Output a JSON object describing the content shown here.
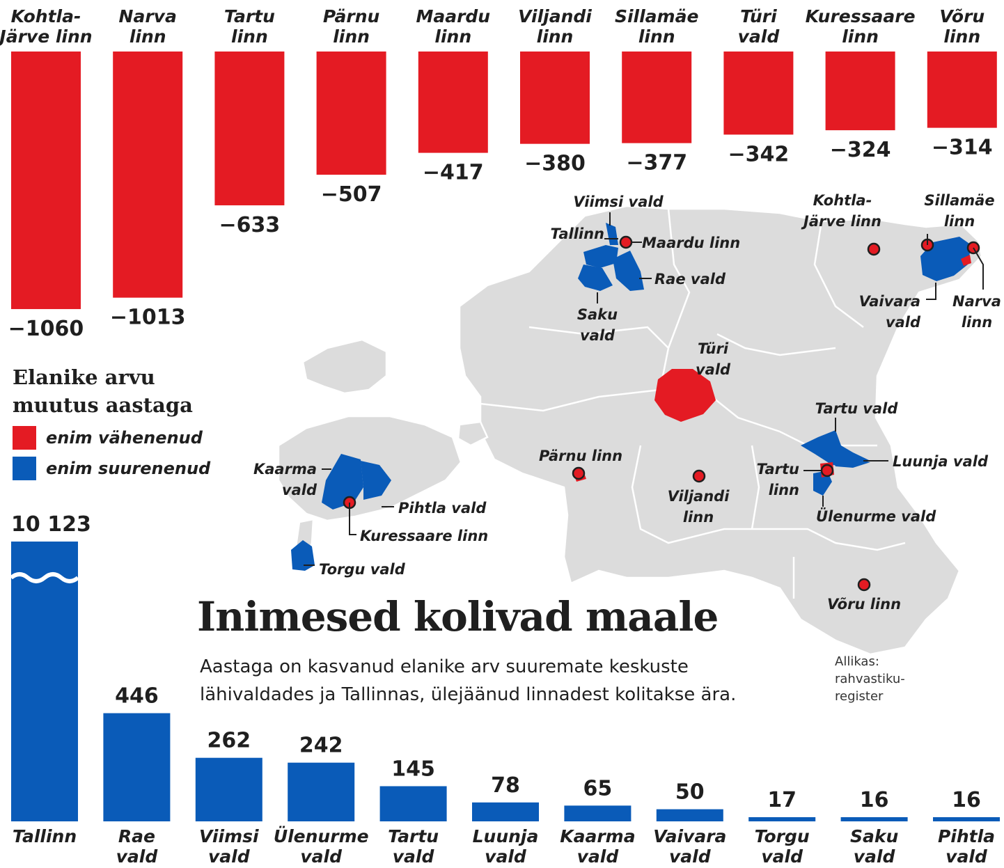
{
  "title": "Inimesed kolivad maale",
  "subtitle": "Aastaga on kasvanud elanike arv suuremate keskuste lähivaldades ja Tallinnas, ülejäänud linnadest kolitakse ära.",
  "source": [
    "Allikas:",
    "rahvastiku-",
    "register"
  ],
  "legend": {
    "title_lines": [
      "Elanike arvu",
      "muutus aastaga"
    ],
    "items": [
      {
        "label": "enim vähenenud",
        "color": "#e41b23"
      },
      {
        "label": "enim suurenenud",
        "color": "#0a5bb8"
      }
    ]
  },
  "chart_data": [
    {
      "type": "bar",
      "title": "Elanike arvu muutus aastaga – enim vähenenud",
      "categories": [
        [
          "Kohtla-",
          "Järve linn"
        ],
        [
          "Narva",
          "linn"
        ],
        [
          "Tartu",
          "linn"
        ],
        [
          "Pärnu",
          "linn"
        ],
        [
          "Maardu",
          "linn"
        ],
        [
          "Viljandi",
          "linn"
        ],
        [
          "Sillamäe",
          "linn"
        ],
        [
          "Türi",
          "vald"
        ],
        [
          "Kuressaare",
          "linn"
        ],
        [
          "Võru",
          "linn"
        ]
      ],
      "values": [
        -1060,
        -1013,
        -633,
        -507,
        -417,
        -380,
        -377,
        -342,
        -324,
        -314
      ],
      "value_labels": [
        "−1060",
        "−1013",
        "−633",
        "−507",
        "−417",
        "−380",
        "−377",
        "−342",
        "−324",
        "−314"
      ],
      "color": "#e41b23"
    },
    {
      "type": "bar",
      "title": "Elanike arvu muutus aastaga – enim suurenenud",
      "categories": [
        [
          "Tallinn"
        ],
        [
          "Rae",
          "vald"
        ],
        [
          "Viimsi",
          "vald"
        ],
        [
          "Ülenurme",
          "vald"
        ],
        [
          "Tartu",
          "vald"
        ],
        [
          "Luunja",
          "vald"
        ],
        [
          "Kaarma",
          "vald"
        ],
        [
          "Vaivara",
          "vald"
        ],
        [
          "Torgu",
          "vald"
        ],
        [
          "Saku",
          "vald"
        ],
        [
          "Pihtla",
          "vald"
        ]
      ],
      "values": [
        10123,
        446,
        262,
        242,
        145,
        78,
        65,
        50,
        17,
        16,
        16
      ],
      "value_labels": [
        "10 123",
        "446",
        "262",
        "242",
        "145",
        "78",
        "65",
        "50",
        "17",
        "16",
        "16"
      ],
      "axis_break": true,
      "color": "#0a5bb8"
    }
  ],
  "map": {
    "labels": [
      {
        "id": "viimsi",
        "lines": [
          "Viimsi vald"
        ]
      },
      {
        "id": "tallinn",
        "lines": [
          "Tallinn"
        ]
      },
      {
        "id": "maardu",
        "lines": [
          "Maardu linn"
        ]
      },
      {
        "id": "rae",
        "lines": [
          "Rae vald"
        ]
      },
      {
        "id": "saku",
        "lines": [
          "Saku",
          "vald"
        ]
      },
      {
        "id": "kohtla",
        "lines": [
          "Kohtla-",
          "Järve linn"
        ]
      },
      {
        "id": "sillamae",
        "lines": [
          "Sillamäe",
          "linn"
        ]
      },
      {
        "id": "vaivara",
        "lines": [
          "Vaivara",
          "vald"
        ]
      },
      {
        "id": "narva",
        "lines": [
          "Narva",
          "linn"
        ]
      },
      {
        "id": "turi",
        "lines": [
          "Türi",
          "vald"
        ]
      },
      {
        "id": "tartuvald",
        "lines": [
          "Tartu vald"
        ]
      },
      {
        "id": "luunja",
        "lines": [
          "Luunja vald"
        ]
      },
      {
        "id": "tartulinn",
        "lines": [
          "Tartu",
          "linn"
        ]
      },
      {
        "id": "ulenurme",
        "lines": [
          "Ülenurme vald"
        ]
      },
      {
        "id": "parnu",
        "lines": [
          "Pärnu linn"
        ]
      },
      {
        "id": "viljandi",
        "lines": [
          "Viljandi",
          "linn"
        ]
      },
      {
        "id": "voru",
        "lines": [
          "Võru linn"
        ]
      },
      {
        "id": "kaarma",
        "lines": [
          "Kaarma",
          "vald"
        ]
      },
      {
        "id": "pihtla",
        "lines": [
          "Pihtla vald"
        ]
      },
      {
        "id": "kuressaare",
        "lines": [
          "Kuressaare linn"
        ]
      },
      {
        "id": "torgu",
        "lines": [
          "Torgu vald"
        ]
      }
    ]
  }
}
